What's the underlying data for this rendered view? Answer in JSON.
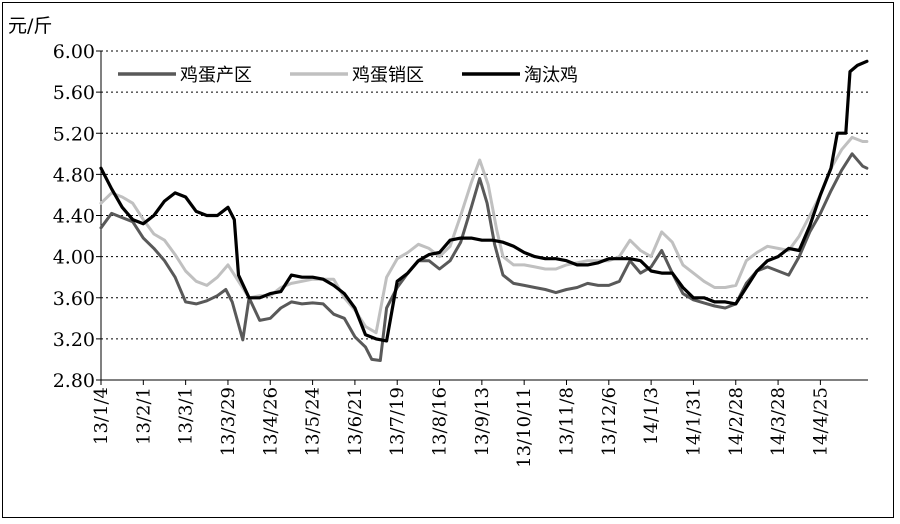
{
  "chart_data": {
    "type": "line",
    "y_unit": "元/斤",
    "ylim": [
      2.8,
      6.0
    ],
    "yticks": [
      2.8,
      3.2,
      3.6,
      4.0,
      4.4,
      4.8,
      5.2,
      5.6,
      6.0
    ],
    "ytick_labels": [
      "2.80",
      "3.20",
      "3.60",
      "4.00",
      "4.40",
      "4.80",
      "5.20",
      "5.60",
      "6.00"
    ],
    "grid": "horizontal-dotted",
    "legend": "top-left",
    "x_tick_labels": [
      "13/1/4",
      "13/2/1",
      "13/3/1",
      "13/3/29",
      "13/4/26",
      "13/5/24",
      "13/6/21",
      "13/7/19",
      "13/8/16",
      "13/9/13",
      "13/10/11",
      "13/11/8",
      "13/12/6",
      "14/1/3",
      "14/1/31",
      "14/2/28",
      "14/3/28",
      "14/4/25"
    ],
    "x_ticks": [
      0,
      4,
      8,
      12,
      16,
      20,
      24,
      28,
      32,
      36,
      40,
      44,
      48,
      52,
      56,
      60,
      64,
      68
    ],
    "x_range": [
      0,
      72.5
    ],
    "series": [
      {
        "name": "鸡蛋产区",
        "color": "#595959",
        "width": 3,
        "points": [
          [
            0,
            4.28
          ],
          [
            1,
            4.42
          ],
          [
            2,
            4.38
          ],
          [
            3,
            4.34
          ],
          [
            4,
            4.18
          ],
          [
            5,
            4.08
          ],
          [
            6,
            3.96
          ],
          [
            7,
            3.8
          ],
          [
            8,
            3.56
          ],
          [
            9,
            3.54
          ],
          [
            10,
            3.57
          ],
          [
            11,
            3.62
          ],
          [
            11.8,
            3.68
          ],
          [
            12.4,
            3.56
          ],
          [
            13.4,
            3.19
          ],
          [
            14,
            3.6
          ],
          [
            15,
            3.38
          ],
          [
            16,
            3.4
          ],
          [
            17,
            3.5
          ],
          [
            18,
            3.56
          ],
          [
            19,
            3.54
          ],
          [
            20,
            3.55
          ],
          [
            21,
            3.54
          ],
          [
            22,
            3.44
          ],
          [
            23,
            3.4
          ],
          [
            24,
            3.22
          ],
          [
            25,
            3.12
          ],
          [
            25.6,
            3.0
          ],
          [
            26.4,
            2.99
          ],
          [
            27,
            3.5
          ],
          [
            28,
            3.7
          ],
          [
            29,
            3.84
          ],
          [
            30,
            3.96
          ],
          [
            31,
            3.96
          ],
          [
            32,
            3.88
          ],
          [
            33,
            3.96
          ],
          [
            34,
            4.14
          ],
          [
            35,
            4.48
          ],
          [
            35.8,
            4.76
          ],
          [
            36.5,
            4.52
          ],
          [
            37.2,
            4.12
          ],
          [
            38,
            3.82
          ],
          [
            39,
            3.74
          ],
          [
            40,
            3.72
          ],
          [
            41,
            3.7
          ],
          [
            42,
            3.68
          ],
          [
            43,
            3.65
          ],
          [
            44,
            3.68
          ],
          [
            45,
            3.7
          ],
          [
            46,
            3.74
          ],
          [
            47,
            3.72
          ],
          [
            48,
            3.72
          ],
          [
            49,
            3.76
          ],
          [
            50,
            3.96
          ],
          [
            51,
            3.84
          ],
          [
            52,
            3.9
          ],
          [
            53,
            4.06
          ],
          [
            54,
            3.84
          ],
          [
            55,
            3.64
          ],
          [
            56,
            3.58
          ],
          [
            57,
            3.55
          ],
          [
            58,
            3.52
          ],
          [
            59,
            3.5
          ],
          [
            60,
            3.54
          ],
          [
            61,
            3.74
          ],
          [
            62,
            3.86
          ],
          [
            63,
            3.9
          ],
          [
            64,
            3.86
          ],
          [
            65,
            3.82
          ],
          [
            66,
            4.0
          ],
          [
            67,
            4.24
          ],
          [
            68,
            4.42
          ],
          [
            69,
            4.64
          ],
          [
            70,
            4.84
          ],
          [
            71,
            5.0
          ],
          [
            72,
            4.88
          ],
          [
            72.4,
            4.86
          ]
        ]
      },
      {
        "name": "鸡蛋销区",
        "color": "#c0c0c0",
        "width": 3,
        "points": [
          [
            0,
            4.52
          ],
          [
            1,
            4.62
          ],
          [
            2,
            4.58
          ],
          [
            3,
            4.52
          ],
          [
            4,
            4.36
          ],
          [
            5,
            4.22
          ],
          [
            6,
            4.16
          ],
          [
            7,
            4.02
          ],
          [
            8,
            3.86
          ],
          [
            9,
            3.76
          ],
          [
            10,
            3.72
          ],
          [
            11,
            3.8
          ],
          [
            12,
            3.92
          ],
          [
            13,
            3.76
          ],
          [
            14,
            3.6
          ],
          [
            15,
            3.62
          ],
          [
            16,
            3.62
          ],
          [
            17,
            3.7
          ],
          [
            18,
            3.74
          ],
          [
            19,
            3.76
          ],
          [
            20,
            3.78
          ],
          [
            21,
            3.78
          ],
          [
            22,
            3.78
          ],
          [
            23,
            3.6
          ],
          [
            24,
            3.48
          ],
          [
            25,
            3.32
          ],
          [
            26,
            3.26
          ],
          [
            27,
            3.8
          ],
          [
            28,
            3.98
          ],
          [
            29,
            4.04
          ],
          [
            30,
            4.12
          ],
          [
            31,
            4.08
          ],
          [
            32,
            4.0
          ],
          [
            33,
            4.1
          ],
          [
            34,
            4.4
          ],
          [
            35,
            4.72
          ],
          [
            35.8,
            4.94
          ],
          [
            36.6,
            4.7
          ],
          [
            37.4,
            4.26
          ],
          [
            38,
            4.0
          ],
          [
            39,
            3.92
          ],
          [
            40,
            3.92
          ],
          [
            41,
            3.9
          ],
          [
            42,
            3.88
          ],
          [
            43,
            3.88
          ],
          [
            44,
            3.92
          ],
          [
            45,
            3.94
          ],
          [
            46,
            3.96
          ],
          [
            47,
            3.96
          ],
          [
            48,
            3.96
          ],
          [
            49,
            4.0
          ],
          [
            50,
            4.16
          ],
          [
            51,
            4.06
          ],
          [
            52,
            4.0
          ],
          [
            53,
            4.24
          ],
          [
            54,
            4.14
          ],
          [
            55,
            3.92
          ],
          [
            56,
            3.84
          ],
          [
            57,
            3.76
          ],
          [
            58,
            3.7
          ],
          [
            59,
            3.7
          ],
          [
            60,
            3.72
          ],
          [
            61,
            3.96
          ],
          [
            62,
            4.04
          ],
          [
            63,
            4.1
          ],
          [
            64,
            4.08
          ],
          [
            65,
            4.06
          ],
          [
            66,
            4.2
          ],
          [
            67,
            4.4
          ],
          [
            68,
            4.6
          ],
          [
            69,
            4.86
          ],
          [
            70,
            5.04
          ],
          [
            71,
            5.16
          ],
          [
            72,
            5.12
          ],
          [
            72.4,
            5.12
          ]
        ]
      },
      {
        "name": "淘汰鸡",
        "color": "#000000",
        "width": 3.2,
        "points": [
          [
            0,
            4.86
          ],
          [
            1,
            4.66
          ],
          [
            2,
            4.48
          ],
          [
            3,
            4.36
          ],
          [
            4,
            4.32
          ],
          [
            5,
            4.4
          ],
          [
            6,
            4.54
          ],
          [
            7,
            4.62
          ],
          [
            8,
            4.58
          ],
          [
            9,
            4.44
          ],
          [
            10,
            4.4
          ],
          [
            11,
            4.4
          ],
          [
            12,
            4.48
          ],
          [
            12.6,
            4.36
          ],
          [
            13,
            3.82
          ],
          [
            14,
            3.6
          ],
          [
            15,
            3.6
          ],
          [
            16,
            3.64
          ],
          [
            17,
            3.66
          ],
          [
            18,
            3.82
          ],
          [
            19,
            3.8
          ],
          [
            20,
            3.8
          ],
          [
            21,
            3.78
          ],
          [
            22,
            3.72
          ],
          [
            23,
            3.64
          ],
          [
            24,
            3.5
          ],
          [
            25,
            3.24
          ],
          [
            26,
            3.2
          ],
          [
            27,
            3.18
          ],
          [
            28,
            3.76
          ],
          [
            29,
            3.84
          ],
          [
            30,
            3.96
          ],
          [
            31,
            4.02
          ],
          [
            32,
            4.04
          ],
          [
            33,
            4.16
          ],
          [
            34,
            4.18
          ],
          [
            35,
            4.18
          ],
          [
            36,
            4.16
          ],
          [
            37,
            4.16
          ],
          [
            38,
            4.14
          ],
          [
            39,
            4.1
          ],
          [
            40,
            4.04
          ],
          [
            41,
            4.0
          ],
          [
            42,
            3.98
          ],
          [
            43,
            3.98
          ],
          [
            44,
            3.96
          ],
          [
            45,
            3.92
          ],
          [
            46,
            3.92
          ],
          [
            47,
            3.94
          ],
          [
            48,
            3.98
          ],
          [
            49,
            3.98
          ],
          [
            50,
            3.98
          ],
          [
            51,
            3.96
          ],
          [
            52,
            3.86
          ],
          [
            53,
            3.84
          ],
          [
            54,
            3.84
          ],
          [
            55,
            3.7
          ],
          [
            56,
            3.6
          ],
          [
            57,
            3.6
          ],
          [
            58,
            3.56
          ],
          [
            59,
            3.56
          ],
          [
            60,
            3.54
          ],
          [
            61,
            3.7
          ],
          [
            62,
            3.86
          ],
          [
            63,
            3.96
          ],
          [
            64,
            4.0
          ],
          [
            65,
            4.08
          ],
          [
            66,
            4.06
          ],
          [
            67,
            4.3
          ],
          [
            68,
            4.6
          ],
          [
            69,
            4.86
          ],
          [
            69.6,
            5.2
          ],
          [
            70.4,
            5.2
          ],
          [
            70.8,
            5.8
          ],
          [
            71.5,
            5.86
          ],
          [
            72.4,
            5.9
          ]
        ]
      }
    ]
  }
}
